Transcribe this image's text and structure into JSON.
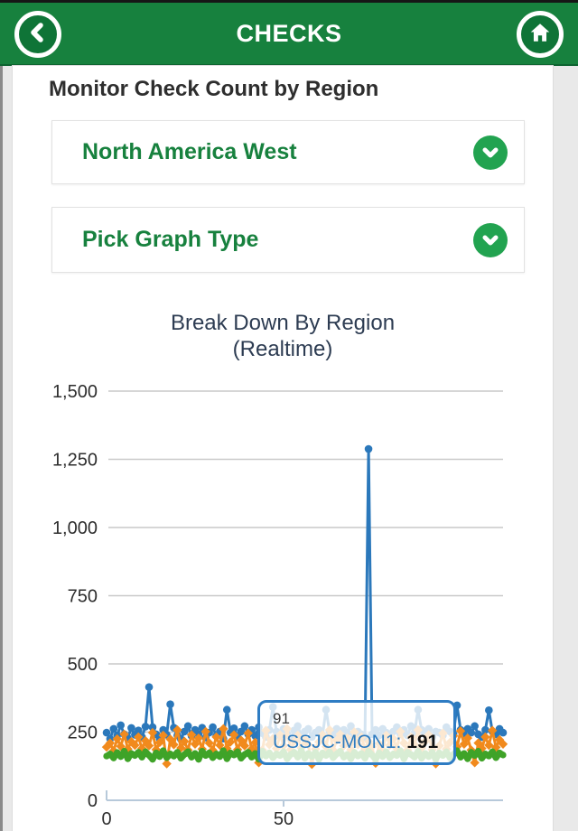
{
  "header": {
    "title": "CHECKS",
    "colors": {
      "bar": "#17813e",
      "bar_dark": "#0d6330",
      "button_green": "#0f7437"
    }
  },
  "page": {
    "heading": "Monitor Check Count by Region"
  },
  "dropdowns": [
    {
      "label": "North America West"
    },
    {
      "label": "Pick Graph Type"
    }
  ],
  "chart_data": {
    "type": "line",
    "title": "Break Down By Region",
    "subtitle": "(Realtime)",
    "ylim": [
      0,
      1500
    ],
    "ytick_values": [
      0,
      250,
      500,
      750,
      1000,
      1250,
      1500
    ],
    "ytick_labels": [
      "0",
      "250",
      "500",
      "750",
      "1,000",
      "1,250",
      "1,500"
    ],
    "xtick_values": [
      0,
      50
    ],
    "xtick_labels": [
      "0",
      "50"
    ],
    "x_max": 112,
    "grid": "horizontal",
    "legend": "none",
    "colors": {
      "blue": "#2b78bb",
      "orange": "#f18a1d",
      "green": "#3fa328",
      "axis": "#b7c9da",
      "gridline": "#c9c9c9"
    },
    "series": [
      {
        "id": "blue",
        "color": "#2b78bb",
        "marker": "circle",
        "values": [
          248,
          225,
          262,
          238,
          275,
          242,
          228,
          265,
          240,
          256,
          232,
          270,
          415,
          268,
          242,
          226,
          258,
          240,
          352,
          266,
          238,
          224,
          252,
          272,
          236,
          258,
          242,
          266,
          230,
          248,
          268,
          236,
          252,
          226,
          332,
          248,
          264,
          232,
          252,
          272,
          242,
          258,
          236,
          268,
          246,
          232,
          258,
          342,
          252,
          238,
          262,
          244,
          226,
          256,
          272,
          238,
          252,
          262,
          232,
          248,
          258,
          238,
          332,
          252,
          242,
          262,
          232,
          258,
          248,
          272,
          238,
          252,
          242,
          232,
          1288,
          242,
          258,
          238,
          262,
          248,
          232,
          252,
          268,
          242,
          258,
          238,
          272,
          248,
          332,
          258,
          242,
          262,
          232,
          252,
          248,
          238,
          268,
          252,
          242,
          348,
          258,
          238,
          262,
          248,
          272,
          242,
          232,
          258,
          330,
          252,
          242,
          262,
          248
        ]
      },
      {
        "id": "orange",
        "color": "#f18a1d",
        "marker": "diamond",
        "values": [
          195,
          210,
          182,
          225,
          198,
          242,
          188,
          215,
          202,
          232,
          190,
          218,
          200,
          248,
          186,
          212,
          238,
          134,
          224,
          204,
          258,
          192,
          216,
          184,
          240,
          206,
          228,
          188,
          252,
          210,
          184,
          232,
          202,
          262,
          190,
          214,
          240,
          186,
          220,
          200,
          246,
          188,
          212,
          138,
          184,
          256,
          204,
          226,
          190,
          240,
          200,
          262,
          186,
          216,
          238,
          192,
          224,
          204,
          132,
          188,
          214,
          240,
          196,
          258,
          184,
          220,
          242,
          200,
          228,
          186,
          250,
          204,
          232,
          188,
          216,
          196,
          136,
          208,
          184,
          238,
          202,
          226,
          190,
          252,
          210,
          184,
          232,
          204,
          258,
          192,
          216,
          240,
          186,
          134,
          200,
          246,
          188,
          212,
          236,
          196,
          254,
          206,
          228,
          184,
          138,
          210,
          190,
          232,
          202,
          256,
          194,
          222,
          206
        ]
      },
      {
        "id": "green",
        "color": "#3fa328",
        "marker": "circle",
        "values": [
          162,
          170,
          155,
          175,
          160,
          180,
          152,
          172,
          164,
          176,
          158,
          178,
          165,
          150,
          174,
          160,
          182,
          156,
          170,
          162,
          176,
          154,
          168,
          178,
          158,
          172,
          150,
          180,
          164,
          174,
          156,
          170,
          160,
          182,
          152,
          174,
          166,
          178,
          154,
          168,
          176,
          158,
          172,
          150,
          180,
          162,
          174,
          156,
          170,
          164,
          178,
          152,
          168,
          176,
          158,
          182,
          154,
          172,
          160,
          176,
          150,
          174,
          164,
          178,
          156,
          170,
          180,
          158,
          168,
          152,
          176,
          162,
          172,
          154,
          180,
          166,
          150,
          174,
          160,
          178,
          156,
          170,
          164,
          182,
          152,
          176,
          168,
          158,
          180,
          154,
          172,
          160,
          176,
          150,
          174,
          164,
          178,
          156,
          168,
          182,
          158,
          172,
          152,
          176,
          164,
          180,
          154,
          170,
          162,
          178,
          156,
          174,
          166
        ]
      }
    ],
    "tooltip": {
      "x_label": "91",
      "series_label": "USSJC-MON1:",
      "value": "191"
    }
  }
}
